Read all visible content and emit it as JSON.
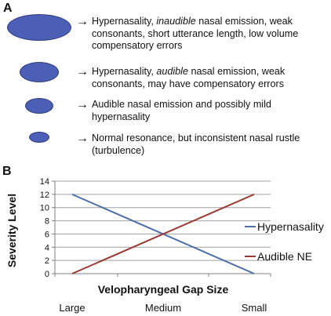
{
  "panels": {
    "a": "A",
    "b": "B"
  },
  "arrow": "→",
  "ellipse_color": "#4a5fb5",
  "items": [
    {
      "size": "large",
      "lines": [
        [
          "Hypernasality, ",
          "inaudible",
          " nasal emission, weak"
        ],
        [
          "consonants, short utterance length, low volume"
        ],
        [
          "compensatory errors"
        ]
      ]
    },
    {
      "size": "medium",
      "lines": [
        [
          "Hypernasality, ",
          "audible",
          " nasal emission, weak"
        ],
        [
          "consonants, may have compensatory errors"
        ]
      ]
    },
    {
      "size": "small",
      "lines": [
        [
          "Audible nasal emission and possibly mild"
        ],
        [
          "hypernasality"
        ]
      ]
    },
    {
      "size": "tiny",
      "lines": [
        [
          "Normal resonance, but inconsistent nasal rustle"
        ],
        [
          "(turbulence)"
        ]
      ]
    }
  ],
  "chart_data": {
    "type": "line",
    "categories": [
      "Large",
      "Medium",
      "Small"
    ],
    "xlabel": "Velopharyngeal Gap Size",
    "ylabel": "Severity Level",
    "ylim": [
      0,
      14
    ],
    "yticks": [
      0,
      2,
      4,
      6,
      8,
      10,
      12,
      14
    ],
    "grid": true,
    "legend_position": "right",
    "series": [
      {
        "name": "Hypernasality",
        "color": "#4f6fa8",
        "values": [
          12,
          6,
          0
        ]
      },
      {
        "name": "Audible NE",
        "color": "#9b3b36",
        "values": [
          0,
          6,
          12
        ]
      }
    ]
  }
}
